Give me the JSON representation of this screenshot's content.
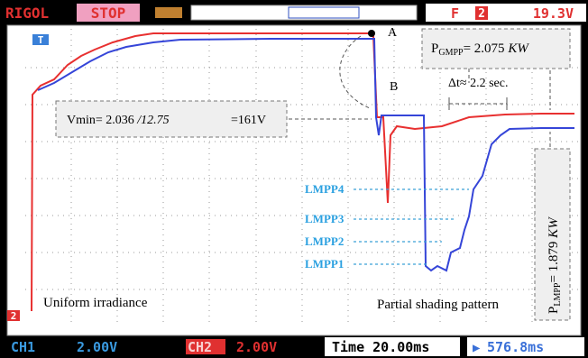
{
  "header": {
    "brand": "RIGOL",
    "state": "STOP",
    "trigger_source": "2",
    "trigger_level": "19.3V"
  },
  "markers": {
    "trigger": "T",
    "ch2": "2"
  },
  "points": {
    "a": "A",
    "b": "B"
  },
  "annotations": {
    "pgmpp": {
      "p": "P",
      "sub": "GMPP",
      "eq": "= 2.075 ",
      "unit": "KW"
    },
    "dt": "Δt≈ 2.2 sec.",
    "vmin": {
      "text": "Vmin= 2.036 ",
      "italic": "/12.75",
      "result": "=161V"
    },
    "plmpp": {
      "p": "P",
      "sub": "LMPP",
      "eq": "= 1.879 ",
      "unit": "KW"
    },
    "lmpp": [
      "LMPP4",
      "LMPP3",
      "LMPP2",
      "LMPP1"
    ],
    "uniform": "Uniform irradiance",
    "partial": "Partial shading pattern"
  },
  "footer": {
    "ch1": "CH1",
    "ch1_scale": "2.00V",
    "ch2": "CH2",
    "ch2_scale": "2.00V",
    "time": "Time 20.00ms",
    "offset": "576.8ms"
  }
}
